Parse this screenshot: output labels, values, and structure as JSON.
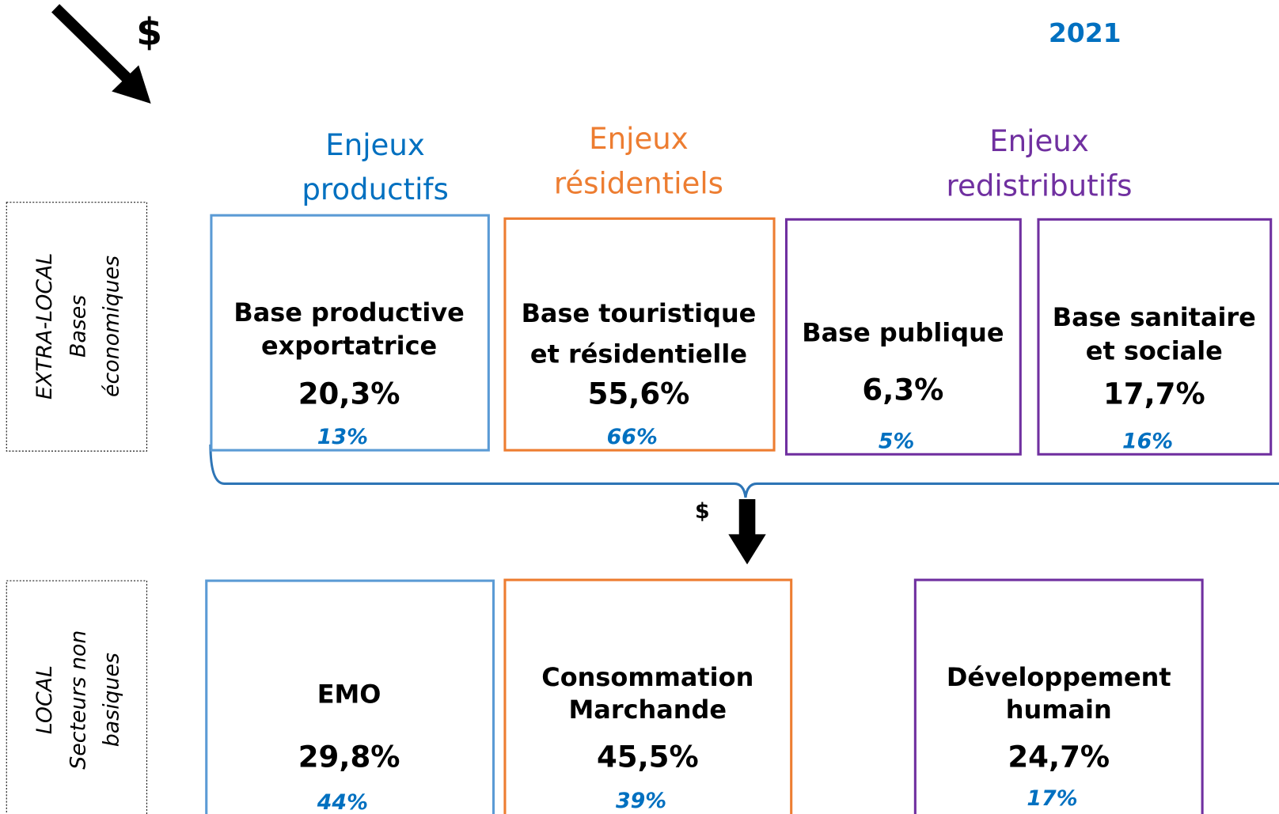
{
  "year": "2021",
  "top_dollar": "$",
  "mid_dollar": "$",
  "headers": [
    {
      "lines": [
        "Enjeux",
        "productifs"
      ],
      "color": "#0070c0"
    },
    {
      "lines": [
        "Enjeux",
        "résidentiels"
      ],
      "color": "#ed7d31"
    },
    {
      "lines": [
        "Enjeux",
        "redistributifs"
      ],
      "color": "#7030a0"
    }
  ],
  "side_labels": [
    {
      "lines": [
        "EXTRA-LOCAL",
        "Bases",
        "économiques"
      ]
    },
    {
      "lines": [
        "LOCAL",
        "Secteurs non",
        "basiques"
      ]
    }
  ],
  "top_boxes": [
    {
      "lines": [
        "Base productive",
        "exportatrice"
      ],
      "value": "20,3%",
      "sub": "13%",
      "color": "#5b9bd5"
    },
    {
      "lines": [
        "Base touristique",
        "et résidentielle"
      ],
      "value": "55,6%",
      "sub": "66%",
      "color": "#ed7d31"
    },
    {
      "lines": [
        "Base publique"
      ],
      "value": "6,3%",
      "sub": "5%",
      "color": "#7030a0"
    },
    {
      "lines": [
        "Base sanitaire",
        "et sociale"
      ],
      "value": "17,7%",
      "sub": "16%",
      "color": "#7030a0"
    }
  ],
  "bottom_boxes": [
    {
      "lines": [
        "EMO"
      ],
      "value": "29,8%",
      "sub": "44%",
      "color": "#5b9bd5"
    },
    {
      "lines": [
        "Consommation",
        "Marchande"
      ],
      "value": "45,5%",
      "sub": "39%",
      "color": "#ed7d31"
    },
    {
      "lines": [
        "Développement",
        "humain"
      ],
      "value": "24,7%",
      "sub": "17%",
      "color": "#7030a0"
    }
  ]
}
